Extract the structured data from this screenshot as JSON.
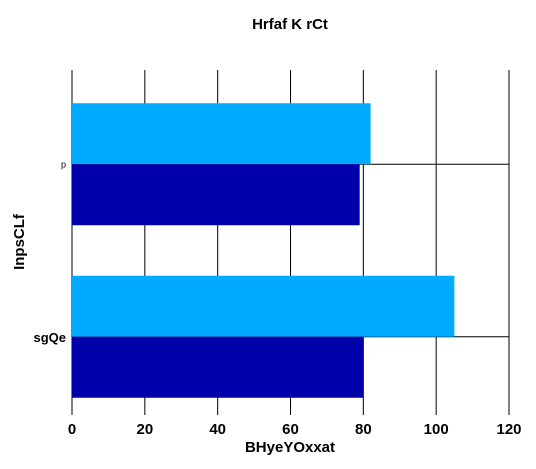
{
  "chart_data": {
    "type": "bar",
    "orientation": "horizontal",
    "title": "Hrfaf K rCt",
    "xlabel": "BHyeYOxxat",
    "ylabel": "InpsCLf",
    "categories": [
      "sgQe",
      "p"
    ],
    "series": [
      {
        "values": [
          105,
          82
        ],
        "color": "#00aaff"
      },
      {
        "values": [
          80,
          79
        ],
        "color": "#0000aa"
      }
    ],
    "xlim": [
      0,
      120
    ],
    "xticks": [
      0,
      20,
      40,
      60,
      80,
      100,
      120
    ],
    "grid": true
  }
}
